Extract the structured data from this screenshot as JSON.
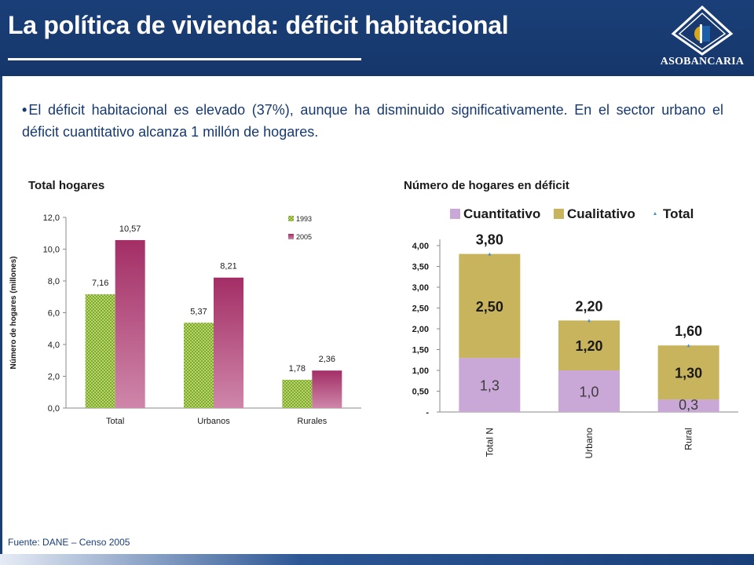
{
  "slide": {
    "title": "La política de vivienda: déficit habitacional",
    "bullet": "El déficit habitacional es elevado (37%), aunque ha disminuido significativamente. En el sector urbano el déficit cuantitativo alcanza 1 millón de hogares.",
    "footnote": "Fuente: DANE – Censo 2005"
  },
  "logo": {
    "text": "ASOBANCARIA",
    "colors": {
      "gold": "#d7a817",
      "blue": "#1d5fa8",
      "outline": "#ffffff"
    }
  },
  "colors": {
    "header": "#1a3f78",
    "text": "#17396f"
  },
  "left_chart": {
    "heading": "Total hogares"
  },
  "right_chart": {
    "heading": "Número de hogares en déficit"
  },
  "chart_data": [
    {
      "type": "bar",
      "categories": [
        "Total",
        "Urbanos",
        "Rurales"
      ],
      "series": [
        {
          "name": "1993",
          "values": [
            7.16,
            5.37,
            1.78
          ],
          "labels": [
            "7,16",
            "5,37",
            "1,78"
          ],
          "color": "#9cc545",
          "pattern": "checker"
        },
        {
          "name": "2005",
          "values": [
            10.57,
            8.21,
            2.36
          ],
          "labels": [
            "10,57",
            "8,21",
            "2,36"
          ],
          "color": "#a8336b",
          "pattern": "gradient"
        }
      ],
      "ylabel": "Número de hogares (millones)",
      "ylim": [
        0,
        12
      ],
      "yticks": [
        0,
        2,
        4,
        6,
        8,
        10,
        12
      ],
      "ytick_labels": [
        "0,0",
        "2,0",
        "4,0",
        "6,0",
        "8,0",
        "10,0",
        "12,0"
      ],
      "legend_position": "top-right",
      "grid": false
    },
    {
      "type": "bar",
      "stacked": true,
      "categories": [
        "Total N",
        "Urbano",
        "Rural"
      ],
      "series": [
        {
          "name": "Cuantitativo",
          "values": [
            1.3,
            1.0,
            0.3
          ],
          "labels": [
            "1,3",
            "1,0",
            "0,3"
          ],
          "color": "#c9a7d6"
        },
        {
          "name": "Cualitativo",
          "values": [
            2.5,
            1.2,
            1.3
          ],
          "labels": [
            "2,50",
            "1,20",
            "1,30"
          ],
          "color": "#c9b45e"
        }
      ],
      "totals": {
        "name": "Total",
        "values": [
          3.8,
          2.2,
          1.6
        ],
        "labels": [
          "3,80",
          "2,20",
          "1,60"
        ],
        "color": "#4a90c9"
      },
      "ylim": [
        0,
        4
      ],
      "yticks": [
        0,
        0.5,
        1,
        1.5,
        2,
        2.5,
        3,
        3.5,
        4
      ],
      "ytick_labels": [
        "-",
        "0,50",
        "1,00",
        "1,50",
        "2,00",
        "2,50",
        "3,00",
        "3,50",
        "4,00"
      ],
      "legend_position": "top",
      "grid": false
    }
  ]
}
